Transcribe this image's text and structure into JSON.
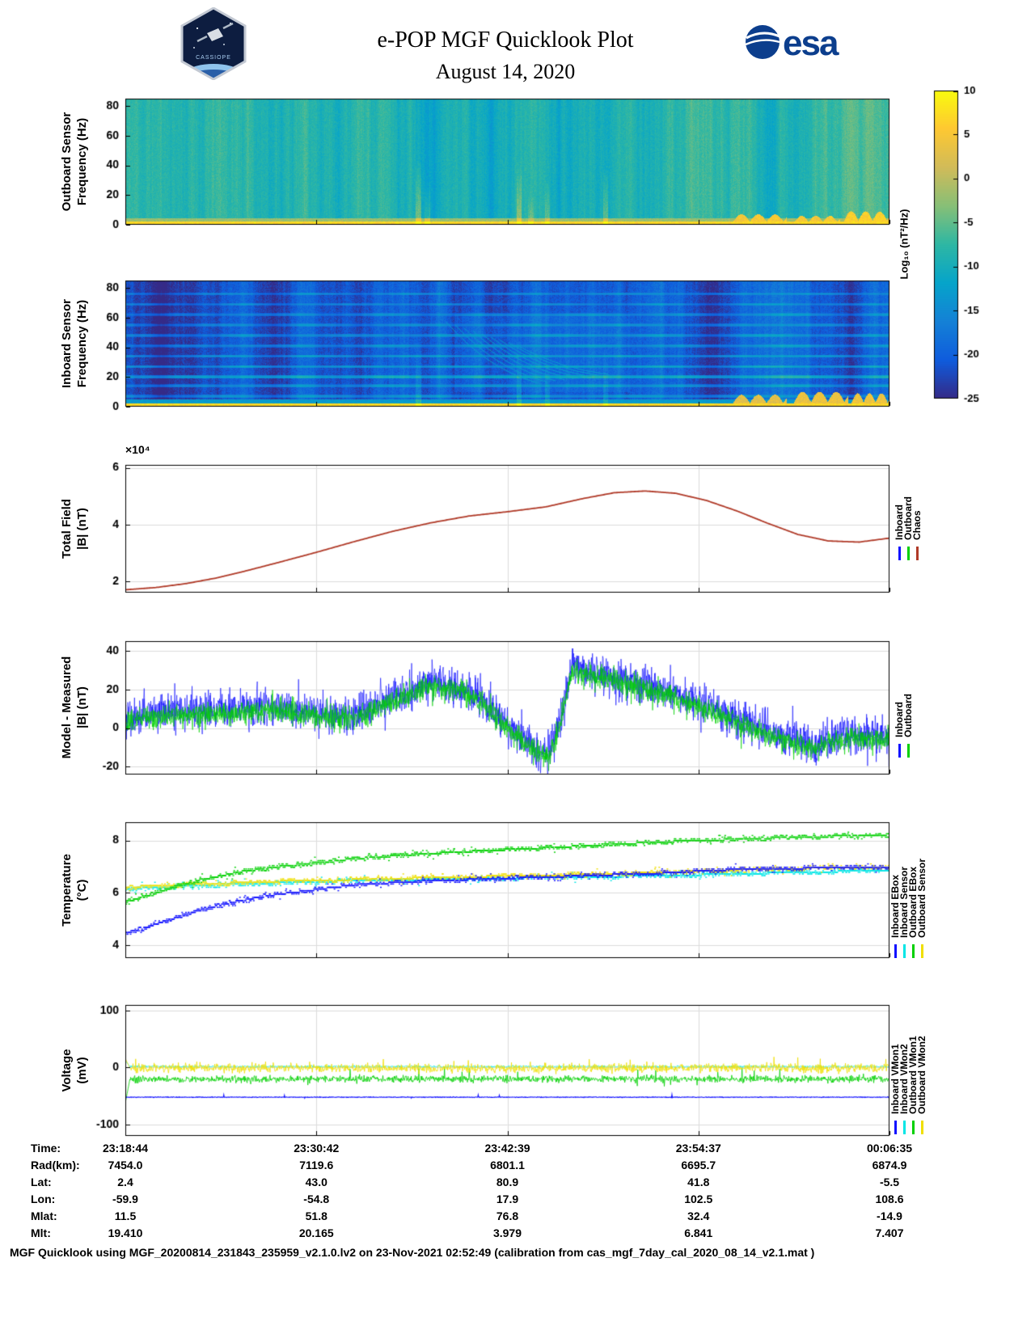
{
  "header": {
    "title": "e-POP MGF Quicklook Plot",
    "date": "August 14, 2020",
    "esa_wordmark": "esa",
    "mission_patch": "CASSIOPE"
  },
  "colorbar": {
    "label": "Log₁₀ (nT²/Hz)",
    "max": 10,
    "min": -25,
    "ticks": [
      10,
      5,
      0,
      -5,
      -10,
      -15,
      -20,
      -25
    ]
  },
  "chart_data": [
    {
      "id": "outboard_spectrogram",
      "type": "heatmap",
      "ylabel_line1": "Outboard Sensor",
      "ylabel_line2": "Frequency (Hz)",
      "ylim": [
        0,
        85
      ],
      "yticks": [
        0,
        20,
        40,
        60,
        80
      ],
      "x_ticks": [
        "23:18:44",
        "23:30:42",
        "23:42:39",
        "23:54:37",
        "00:06:35"
      ],
      "color_scale": "parula",
      "background_level": -8,
      "noise_amp": 1.3,
      "bottom_band": {
        "freq_max": 2,
        "level": 7
      },
      "low_band": {
        "freq_max": 4.5,
        "level": -2
      },
      "vertical_streaks": [
        {
          "x": 0.383,
          "fmax": 45,
          "boost": 7
        },
        {
          "x": 0.395,
          "fmax": 28,
          "boost": 5
        },
        {
          "x": 0.515,
          "fmax": 42,
          "boost": 7
        },
        {
          "x": 0.53,
          "fmax": 22,
          "boost": 4
        },
        {
          "x": 0.552,
          "fmax": 30,
          "boost": 5
        },
        {
          "x": 0.628,
          "fmax": 38,
          "boost": 6
        }
      ],
      "bottom_bumps": [
        {
          "x0": 0.795,
          "x1": 0.865,
          "fmax": 7,
          "level": 5
        },
        {
          "x0": 0.875,
          "x1": 0.935,
          "fmax": 6,
          "level": 5
        },
        {
          "x0": 0.94,
          "x1": 1.0,
          "fmax": 9,
          "level": 6
        }
      ]
    },
    {
      "id": "inboard_spectrogram",
      "type": "heatmap",
      "ylabel_line1": "Inboard Sensor",
      "ylabel_line2": "Frequency (Hz)",
      "ylim": [
        0,
        85
      ],
      "yticks": [
        0,
        20,
        40,
        60,
        80
      ],
      "color_scale": "parula",
      "background_level": -21,
      "noise_amp": 1.6,
      "bottom_band": {
        "freq_max": 2,
        "level": 7
      },
      "low_band": {
        "freq_max": 5,
        "level": -13
      },
      "mid_bright": {
        "x0": 0.43,
        "x1": 0.66,
        "boost": 1.5
      },
      "harmonic_lines": [
        {
          "freq": 7,
          "level": -14
        },
        {
          "freq": 14,
          "level": -14
        },
        {
          "freq": 20,
          "level": -11
        },
        {
          "freq": 27,
          "level": -13.5
        },
        {
          "freq": 34,
          "level": -14
        },
        {
          "freq": 41,
          "level": -14.5
        },
        {
          "freq": 48,
          "level": -14.5
        },
        {
          "freq": 55,
          "level": -15
        },
        {
          "freq": 62,
          "level": -15
        },
        {
          "freq": 69,
          "level": -15.5
        },
        {
          "freq": 76,
          "level": -15.5
        }
      ],
      "sweep_arcs": {
        "x_start": 0.42,
        "x_end": 0.645,
        "count": 9,
        "freq_high": 57,
        "freq_low": 16,
        "level": -12
      },
      "vertical_streaks": [
        {
          "x": 0.383,
          "fmax": 50,
          "boost": 5
        },
        {
          "x": 0.515,
          "fmax": 45,
          "boost": 5
        },
        {
          "x": 0.552,
          "fmax": 30,
          "boost": 4
        },
        {
          "x": 0.628,
          "fmax": 40,
          "boost": 4
        }
      ],
      "bottom_bumps": [
        {
          "x0": 0.795,
          "x1": 0.865,
          "fmax": 8,
          "level": 3
        },
        {
          "x0": 0.875,
          "x1": 0.945,
          "fmax": 10,
          "level": 4
        },
        {
          "x0": 0.95,
          "x1": 1.0,
          "fmax": 9,
          "level": 4
        }
      ]
    },
    {
      "id": "total_field",
      "type": "line",
      "ylabel_line1": "Total Field",
      "ylabel_line2": "|B| (nT)",
      "exponent_label": "×10⁴",
      "ylim": [
        16000,
        61000
      ],
      "yticks": [
        20000,
        40000,
        60000
      ],
      "ytick_labels": [
        "2",
        "4",
        "6"
      ],
      "series": [
        {
          "name": "Inboard",
          "color": "#0f0fff",
          "overlapped_by_chaos": true
        },
        {
          "name": "Outboard",
          "color": "#00d000",
          "overlapped_by_chaos": true
        },
        {
          "name": "Chaos",
          "color": "#b03a28",
          "x": [
            0,
            0.04,
            0.08,
            0.12,
            0.16,
            0.2,
            0.25,
            0.3,
            0.35,
            0.4,
            0.45,
            0.5,
            0.55,
            0.6,
            0.64,
            0.68,
            0.72,
            0.76,
            0.8,
            0.84,
            0.88,
            0.92,
            0.96,
            1.0
          ],
          "values": [
            17000,
            17800,
            19200,
            21200,
            23800,
            26600,
            30200,
            34000,
            37600,
            40600,
            43000,
            44500,
            46200,
            49200,
            51200,
            51800,
            51000,
            48500,
            44800,
            40500,
            36500,
            34200,
            33800,
            35200
          ]
        }
      ]
    },
    {
      "id": "model_minus_measured",
      "type": "line",
      "ylabel_line1": "Model - Measured",
      "ylabel_line2": "|B| (nT)",
      "ylim": [
        -24,
        45
      ],
      "yticks": [
        -20,
        0,
        20,
        40
      ],
      "ytick_labels": [
        "-20",
        "0",
        "20",
        "40"
      ],
      "mean_x": [
        0,
        0.05,
        0.1,
        0.15,
        0.2,
        0.24,
        0.28,
        0.32,
        0.36,
        0.4,
        0.44,
        0.47,
        0.5,
        0.53,
        0.555,
        0.572,
        0.585,
        0.62,
        0.66,
        0.7,
        0.75,
        0.8,
        0.85,
        0.9,
        0.94,
        1.0
      ],
      "mean_values": [
        5,
        8,
        9,
        10,
        11,
        9,
        6,
        10,
        17,
        24,
        21,
        14,
        2,
        -9,
        -13,
        8,
        32,
        28,
        24,
        20,
        13,
        5,
        -3,
        -8,
        -4,
        -4
      ],
      "series": [
        {
          "name": "Inboard",
          "color": "#0f0fff",
          "noise_amp": 7,
          "offset": 0
        },
        {
          "name": "Outboard",
          "color": "#00d000",
          "noise_amp": 4.5,
          "offset": -2
        }
      ]
    },
    {
      "id": "temperature",
      "type": "line",
      "ylabel_line1": "Temperature",
      "ylabel_line2": "(°C)",
      "ylim": [
        3.5,
        8.7
      ],
      "yticks": [
        4,
        6,
        8
      ],
      "ytick_labels": [
        "4",
        "6",
        "8"
      ],
      "quantization_step": 0.064,
      "x": [
        0,
        0.02,
        0.05,
        0.1,
        0.15,
        0.2,
        0.3,
        0.4,
        0.5,
        0.6,
        0.7,
        0.8,
        0.9,
        1.0
      ],
      "series": [
        {
          "name": "Inboard EBox",
          "color": "#0f0fff",
          "values": [
            4.45,
            4.6,
            4.9,
            5.35,
            5.7,
            5.95,
            6.3,
            6.45,
            6.55,
            6.65,
            6.75,
            6.9,
            6.95,
            7.0
          ]
        },
        {
          "name": "Inboard Sensor",
          "color": "#00e6e6",
          "values": [
            6.15,
            6.18,
            6.22,
            6.28,
            6.33,
            6.37,
            6.45,
            6.5,
            6.55,
            6.6,
            6.65,
            6.72,
            6.8,
            6.85
          ]
        },
        {
          "name": "Outboard EBox",
          "color": "#00d000",
          "values": [
            5.65,
            5.8,
            6.1,
            6.5,
            6.8,
            7.0,
            7.3,
            7.5,
            7.65,
            7.8,
            7.95,
            8.05,
            8.15,
            8.2
          ]
        },
        {
          "name": "Outboard Sensor",
          "color": "#f0df00",
          "values": [
            6.2,
            6.24,
            6.28,
            6.33,
            6.38,
            6.43,
            6.5,
            6.58,
            6.64,
            6.7,
            6.78,
            6.88,
            6.95,
            7.0
          ]
        }
      ]
    },
    {
      "id": "voltage",
      "type": "line",
      "ylabel_line1": "Voltage",
      "ylabel_line2": "(mV)",
      "ylim": [
        -120,
        110
      ],
      "yticks": [
        -100,
        0,
        100
      ],
      "ytick_labels": [
        "-100",
        "0",
        "100"
      ],
      "series": [
        {
          "name": "Inboard VMon1",
          "color": "#0f0fff",
          "mean": -52,
          "noise_amp": 0.6,
          "spike_rate": 0.004,
          "spike_amp": 4
        },
        {
          "name": "Inboard VMon2",
          "color": "#00e6e6",
          "mean": 2,
          "noise_amp": 1.5,
          "spike_rate": 0.002,
          "spike_amp": 5,
          "start_transient": 12
        },
        {
          "name": "Outboard VMon1",
          "color": "#00d000",
          "mean": -20,
          "noise_amp": 6,
          "spike_rate": 0.02,
          "spike_amp": 18,
          "start_transient": -62
        },
        {
          "name": "Outboard VMon2",
          "color": "#f0df00",
          "mean": -1,
          "noise_amp": 8,
          "spike_rate": 0.03,
          "spike_amp": 16,
          "start_transient": 16
        }
      ]
    }
  ],
  "ephemeris_table": {
    "rows": [
      {
        "label": "Time:",
        "values": [
          "23:18:44",
          "23:30:42",
          "23:42:39",
          "23:54:37",
          "00:06:35"
        ]
      },
      {
        "label": "Rad(km):",
        "values": [
          "7454.0",
          "7119.6",
          "6801.1",
          "6695.7",
          "6874.9"
        ]
      },
      {
        "label": "Lat:",
        "values": [
          "2.4",
          "43.0",
          "80.9",
          "41.8",
          "-5.5"
        ]
      },
      {
        "label": "Lon:",
        "values": [
          "-59.9",
          "-54.8",
          "17.9",
          "102.5",
          "108.6"
        ]
      },
      {
        "label": "Mlat:",
        "values": [
          "11.5",
          "51.8",
          "76.8",
          "32.4",
          "-14.9"
        ]
      },
      {
        "label": "Mlt:",
        "values": [
          "19.410",
          "20.165",
          "3.979",
          "6.841",
          "7.407"
        ]
      }
    ]
  },
  "footer": "MGF Quicklook using MGF_20200814_231843_235959_v2.1.0.lv2 on 23-Nov-2021 02:52:49 (calibration from cas_mgf_7day_cal_2020_08_14_v2.1.mat )"
}
